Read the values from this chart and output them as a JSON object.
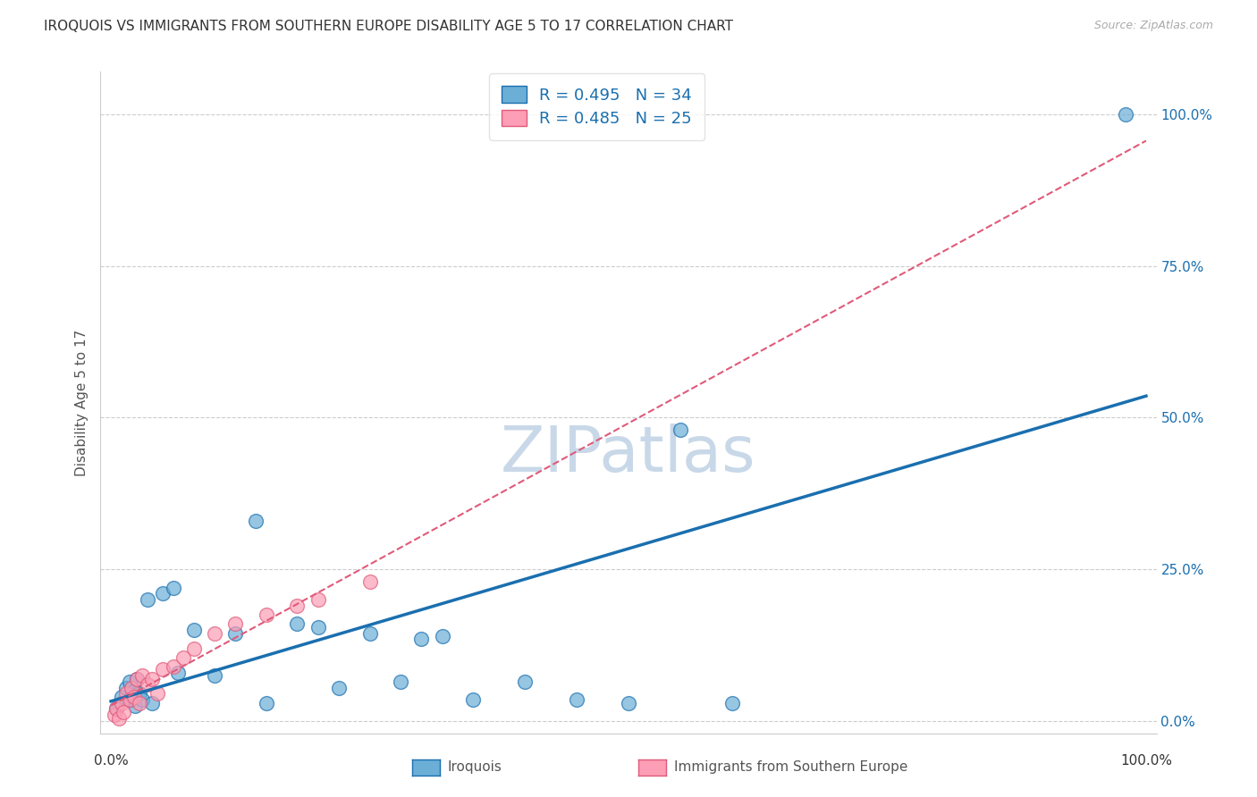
{
  "title": "IROQUOIS VS IMMIGRANTS FROM SOUTHERN EUROPE DISABILITY AGE 5 TO 17 CORRELATION CHART",
  "source": "Source: ZipAtlas.com",
  "ylabel": "Disability Age 5 to 17",
  "legend_label1": "Iroquois",
  "legend_label2": "Immigrants from Southern Europe",
  "r1": 0.495,
  "n1": 34,
  "r2": 0.485,
  "n2": 25,
  "color_iroquois": "#6baed6",
  "color_immigrants": "#fc9eb5",
  "color_line_iroquois": "#1a6faf",
  "color_line_immigrants": "#e05a7a",
  "background_color": "#ffffff",
  "watermark_color": "#c8d8e8",
  "iroquois_x": [
    0.5,
    1.0,
    1.5,
    1.8,
    2.0,
    2.2,
    2.3,
    2.5,
    2.8,
    3.0,
    3.5,
    4.0,
    5.0,
    6.0,
    6.5,
    8.0,
    10.0,
    12.0,
    14.0,
    15.0,
    18.0,
    20.0,
    22.0,
    25.0,
    28.0,
    30.0,
    32.0,
    35.0,
    40.0,
    45.0,
    50.0,
    55.0,
    60.0,
    98.0
  ],
  "iroquois_y": [
    2.0,
    4.0,
    5.5,
    6.5,
    3.5,
    5.0,
    2.5,
    7.0,
    4.5,
    3.5,
    20.0,
    3.0,
    21.0,
    22.0,
    8.0,
    15.0,
    7.5,
    14.5,
    33.0,
    3.0,
    16.0,
    15.5,
    5.5,
    14.5,
    6.5,
    13.5,
    14.0,
    3.5,
    6.5,
    3.5,
    3.0,
    48.0,
    3.0,
    100.0
  ],
  "immigrants_x": [
    0.3,
    0.5,
    0.8,
    1.0,
    1.2,
    1.5,
    1.8,
    2.0,
    2.2,
    2.5,
    2.8,
    3.0,
    3.5,
    4.0,
    4.5,
    5.0,
    6.0,
    7.0,
    8.0,
    10.0,
    12.0,
    15.0,
    18.0,
    20.0,
    25.0
  ],
  "immigrants_y": [
    1.0,
    2.0,
    0.5,
    3.0,
    1.5,
    4.5,
    3.5,
    5.5,
    4.0,
    7.0,
    3.0,
    7.5,
    6.0,
    7.0,
    4.5,
    8.5,
    9.0,
    10.5,
    12.0,
    14.5,
    16.0,
    17.5,
    19.0,
    20.0,
    23.0
  ]
}
